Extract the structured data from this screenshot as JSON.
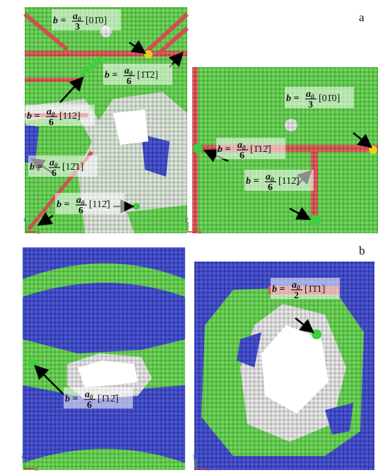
{
  "figure": {
    "panel_labels": [
      "a",
      "b"
    ],
    "panels": [
      {
        "labels": [
          {
            "prefix": "b =",
            "symbol": "a",
            "subscript": "0",
            "denominator": "3",
            "direction": "[01̄0]"
          },
          {
            "prefix": "b =",
            "symbol": "a",
            "subscript": "0",
            "denominator": "6",
            "direction": "[1̄1̄2]"
          },
          {
            "prefix": "b =",
            "symbol": "a",
            "subscript": "0",
            "denominator": "6",
            "direction": "[112]"
          },
          {
            "prefix": "b =",
            "symbol": "a",
            "subscript": "0",
            "denominator": "6",
            "direction": "[12̄1]"
          },
          {
            "prefix": "b =",
            "symbol": "a",
            "subscript": "0",
            "denominator": "6",
            "direction": "[112̄]"
          }
        ],
        "axes": [
          "z",
          "x"
        ]
      },
      {
        "labels": [
          {
            "prefix": "b =",
            "symbol": "a",
            "subscript": "0",
            "denominator": "3",
            "direction": "[01̄0]"
          },
          {
            "prefix": "b =",
            "symbol": "a",
            "subscript": "0",
            "denominator": "6",
            "direction": "[1̄12̄]"
          },
          {
            "prefix": "b =",
            "symbol": "a",
            "subscript": "0",
            "denominator": "6",
            "direction": "[112̄]"
          }
        ],
        "axes": [
          "y",
          "x"
        ]
      },
      {
        "labels": [
          {
            "prefix": "b =",
            "symbol": "a",
            "subscript": "0",
            "denominator": "6",
            "direction": "[1̄12̄]"
          }
        ],
        "axes": [
          "z",
          "x"
        ]
      },
      {
        "labels": [
          {
            "prefix": "b =",
            "symbol": "a",
            "subscript": "0",
            "denominator": "2",
            "direction": "[1̄1̄1]"
          }
        ],
        "axes": [
          "y",
          "x"
        ]
      }
    ]
  }
}
